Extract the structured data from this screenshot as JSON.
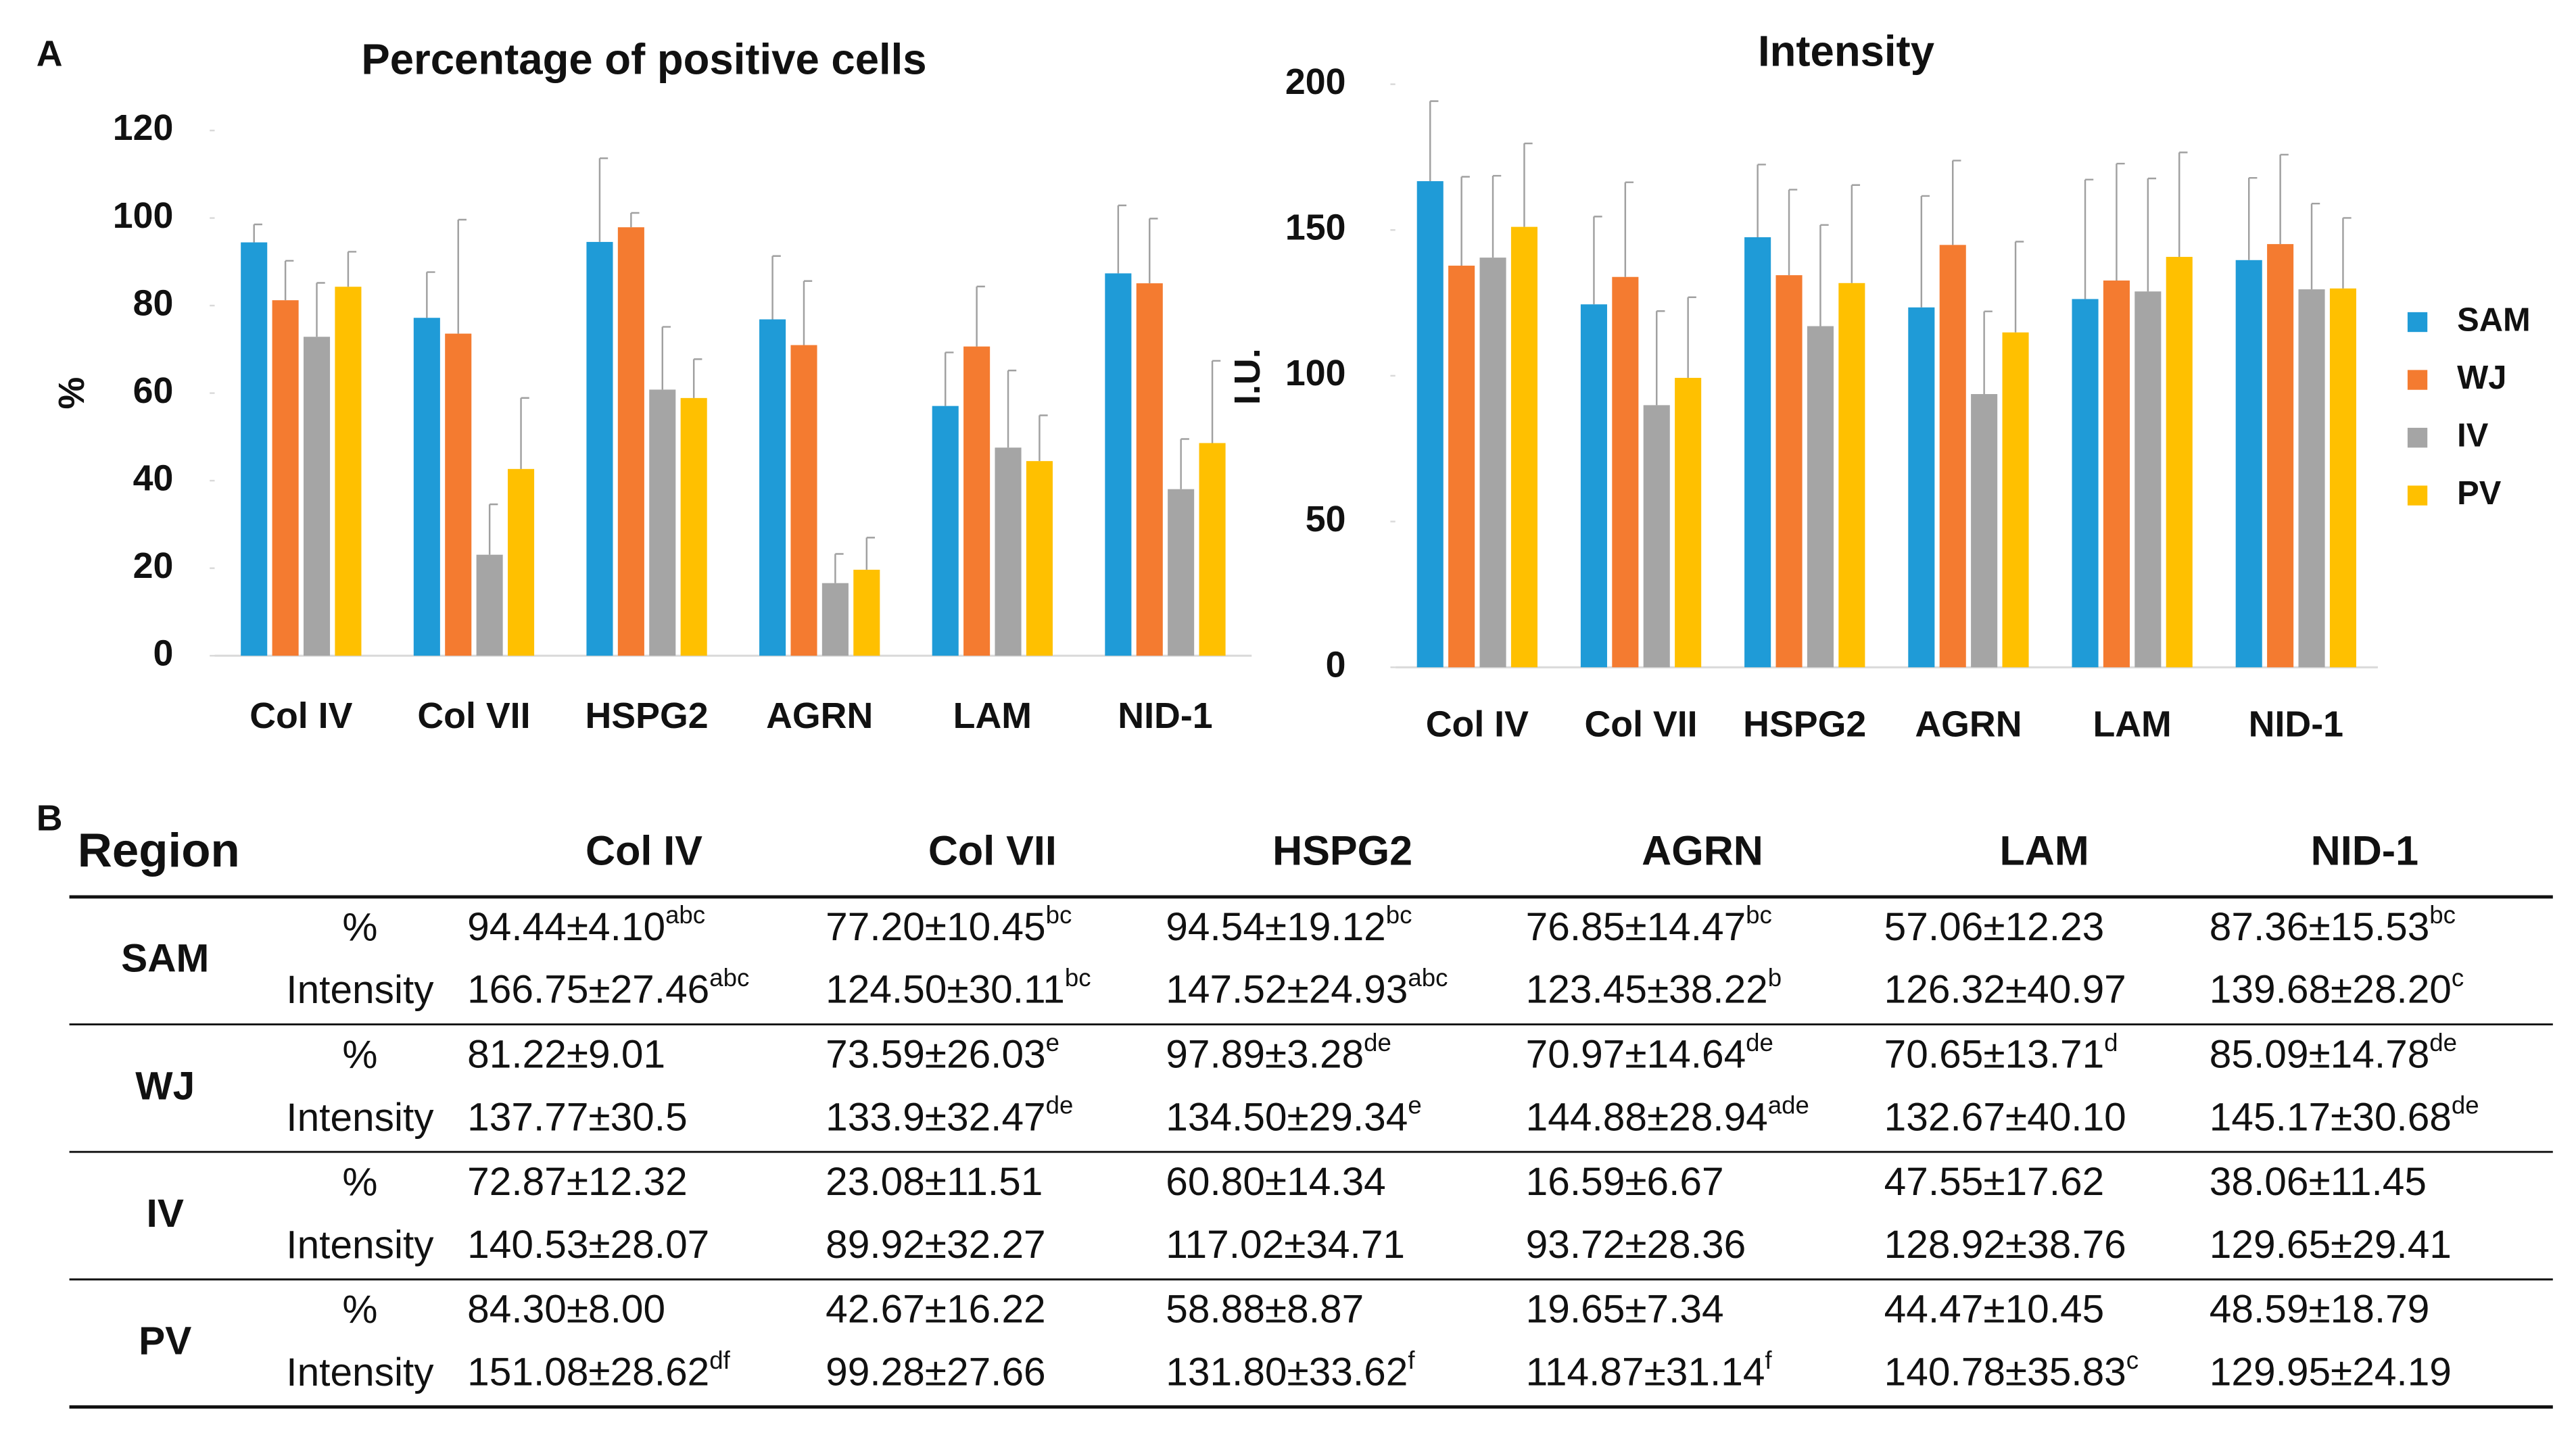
{
  "panel_labels": [
    "A",
    "B"
  ],
  "chart_data": [
    {
      "type": "bar",
      "title": "Percentage of positive cells",
      "y_label": "%",
      "categories": [
        "Col IV",
        "Col VII",
        "HSPG2",
        "AGRN",
        "LAM",
        "NID-1"
      ],
      "series": [
        {
          "name": "SAM",
          "color": "#1f9bd7",
          "values": [
            94.44,
            77.2,
            94.54,
            76.85,
            57.06,
            87.36
          ],
          "errors": [
            4.1,
            10.45,
            19.12,
            14.47,
            12.23,
            15.53
          ]
        },
        {
          "name": "WJ",
          "color": "#f47b30",
          "values": [
            81.22,
            73.59,
            97.89,
            70.97,
            70.65,
            85.09
          ],
          "errors": [
            9.01,
            26.03,
            3.28,
            14.64,
            13.71,
            14.78
          ]
        },
        {
          "name": "IV",
          "color": "#a5a5a5",
          "values": [
            72.87,
            23.08,
            60.8,
            16.59,
            47.55,
            38.06
          ],
          "errors": [
            12.32,
            11.51,
            14.34,
            6.67,
            17.62,
            11.45
          ]
        },
        {
          "name": "PV",
          "color": "#ffc000",
          "values": [
            84.3,
            42.67,
            58.88,
            19.65,
            44.47,
            48.59
          ],
          "errors": [
            8.0,
            16.22,
            8.87,
            7.34,
            10.45,
            18.79
          ]
        }
      ],
      "ylim": [
        0,
        120
      ],
      "yticks": [
        0,
        20,
        40,
        60,
        80,
        100,
        120
      ]
    },
    {
      "type": "bar",
      "title": "Intensity",
      "y_label": "I.U.",
      "legend": "right",
      "categories": [
        "Col IV",
        "Col VII",
        "HSPG2",
        "AGRN",
        "LAM",
        "NID-1"
      ],
      "series": [
        {
          "name": "SAM",
          "color": "#1f9bd7",
          "values": [
            166.75,
            124.5,
            147.52,
            123.45,
            126.32,
            139.68
          ],
          "errors": [
            27.46,
            30.11,
            24.93,
            38.22,
            40.97,
            28.2
          ]
        },
        {
          "name": "WJ",
          "color": "#f47b30",
          "values": [
            137.77,
            133.9,
            134.5,
            144.88,
            132.67,
            145.17
          ],
          "errors": [
            30.5,
            32.47,
            29.34,
            28.94,
            40.1,
            30.68
          ]
        },
        {
          "name": "IV",
          "color": "#a5a5a5",
          "values": [
            140.53,
            89.92,
            117.02,
            93.72,
            128.92,
            129.65
          ],
          "errors": [
            28.07,
            32.27,
            34.71,
            28.36,
            38.76,
            29.41
          ]
        },
        {
          "name": "PV",
          "color": "#ffc000",
          "values": [
            151.08,
            99.28,
            131.8,
            114.87,
            140.78,
            129.95
          ],
          "errors": [
            28.62,
            27.66,
            33.62,
            31.14,
            35.83,
            24.19
          ]
        }
      ],
      "ylim": [
        0,
        200
      ],
      "yticks": [
        0,
        50,
        100,
        150,
        200
      ]
    }
  ],
  "table": {
    "header": [
      "Region",
      "Col IV",
      "Col VII",
      "HSPG2",
      "AGRN",
      "LAM",
      "NID-1"
    ],
    "rows": [
      {
        "region": "SAM",
        "lines": [
          {
            "measure": "%",
            "cells": [
              {
                "text": "94.44±4.10",
                "sup": "abc"
              },
              {
                "text": "77.20±10.45",
                "sup": "bc"
              },
              {
                "text": "94.54±19.12",
                "sup": "bc"
              },
              {
                "text": "76.85±14.47",
                "sup": "bc"
              },
              {
                "text": "57.06±12.23"
              },
              {
                "text": "87.36±15.53",
                "sup": "bc"
              }
            ]
          },
          {
            "measure": "Intensity",
            "cells": [
              {
                "text": "166.75±27.46",
                "sup": "abc"
              },
              {
                "text": "124.50±30.11",
                "sup": "bc"
              },
              {
                "text": "147.52±24.93",
                "sup": "abc"
              },
              {
                "text": "123.45±38.22",
                "sup": "b"
              },
              {
                "text": "126.32±40.97"
              },
              {
                "text": "139.68±28.20",
                "sup": "c"
              }
            ]
          }
        ]
      },
      {
        "region": "WJ",
        "lines": [
          {
            "measure": "%",
            "cells": [
              {
                "text": "81.22±9.01"
              },
              {
                "text": "73.59±26.03",
                "sup": "e"
              },
              {
                "text": "97.89±3.28",
                "sup": "de"
              },
              {
                "text": "70.97±14.64",
                "sup": "de"
              },
              {
                "text": "70.65±13.71",
                "sup": "d"
              },
              {
                "text": "85.09±14.78",
                "sup": "de"
              }
            ]
          },
          {
            "measure": "Intensity",
            "cells": [
              {
                "text": "137.77±30.5"
              },
              {
                "text": "133.9±32.47",
                "sup": "de"
              },
              {
                "text": "134.50±29.34",
                "sup": "e"
              },
              {
                "text": "144.88±28.94",
                "sup": "ade"
              },
              {
                "text": "132.67±40.10"
              },
              {
                "text": "145.17±30.68",
                "sup": "de"
              }
            ]
          }
        ]
      },
      {
        "region": "IV",
        "lines": [
          {
            "measure": "%",
            "cells": [
              {
                "text": "72.87±12.32"
              },
              {
                "text": "23.08±11.51"
              },
              {
                "text": "60.80±14.34"
              },
              {
                "text": "16.59±6.67"
              },
              {
                "text": "47.55±17.62"
              },
              {
                "text": "38.06±11.45"
              }
            ]
          },
          {
            "measure": "Intensity",
            "cells": [
              {
                "text": "140.53±28.07"
              },
              {
                "text": "89.92±32.27"
              },
              {
                "text": "117.02±34.71"
              },
              {
                "text": "93.72±28.36"
              },
              {
                "text": "128.92±38.76"
              },
              {
                "text": "129.65±29.41"
              }
            ]
          }
        ]
      },
      {
        "region": "PV",
        "lines": [
          {
            "measure": "%",
            "cells": [
              {
                "text": "84.30±8.00"
              },
              {
                "text": "42.67±16.22"
              },
              {
                "text": "58.88±8.87"
              },
              {
                "text": "19.65±7.34"
              },
              {
                "text": "44.47±10.45"
              },
              {
                "text": "48.59±18.79"
              }
            ]
          },
          {
            "measure": "Intensity",
            "cells": [
              {
                "text": "151.08±28.62",
                "sup": "df"
              },
              {
                "text": "99.28±27.66"
              },
              {
                "text": "131.80±33.62",
                "sup": "f"
              },
              {
                "text": "114.87±31.14",
                "sup": "f"
              },
              {
                "text": "140.78±35.83",
                "sup": "c"
              },
              {
                "text": "129.95±24.19"
              }
            ]
          }
        ]
      }
    ]
  }
}
